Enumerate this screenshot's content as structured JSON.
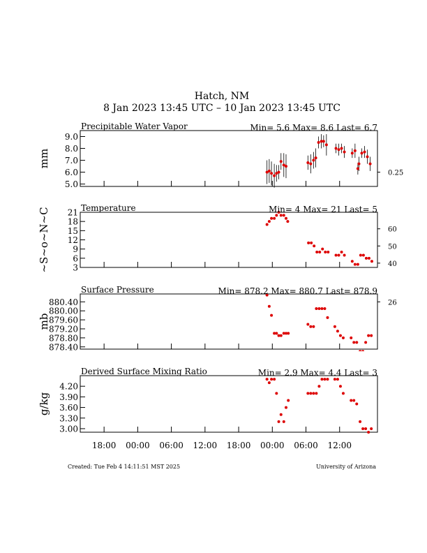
{
  "header": {
    "title": "Hatch, NM",
    "subtitle": "8 Jan 2023 13:45 UTC – 10 Jan 2023 13:45 UTC"
  },
  "footer": {
    "created": "Created: Tue Feb  4 14:11:51 MST 2025",
    "credit": "University of Arizona"
  },
  "x_tick_labels": [
    "18:00",
    "00:00",
    "06:00",
    "12:00",
    "18:00",
    "00:00",
    "06:00",
    "12:00"
  ],
  "colors": {
    "points": "#dd0000",
    "error_bars": "#000000",
    "axes": "#000000"
  },
  "chart_data": [
    {
      "type": "scatter",
      "title": "Precipitable Water Vapor",
      "ylabel": "mm",
      "stats": "Min= 5.6 Max= 8.6 Last= 6.7",
      "ylim": [
        4.8,
        9.5
      ],
      "yticks": [
        5.0,
        6.0,
        7.0,
        8.0,
        9.0
      ],
      "ytick_labels": [
        "5.0",
        "6.0",
        "7.0",
        "8.0",
        "9.0"
      ],
      "right_label": "0.25",
      "right_label_at": 6.0,
      "x_unit": "hours since 8 Jan 2023 13:45 UTC",
      "x": [
        33.3,
        33.7,
        34.1,
        34.6,
        35.0,
        35.4,
        35.8,
        36.3,
        36.7,
        40.6,
        41.1,
        41.6,
        42.0,
        42.5,
        43.0,
        43.4,
        43.9,
        45.6,
        46.1,
        46.6,
        47.1,
        48.5,
        49.0,
        49.5,
        49.7,
        50.2,
        50.7,
        51.2,
        51.7
      ],
      "y": [
        6.0,
        6.1,
        5.9,
        5.7,
        5.9,
        6.0,
        6.9,
        6.6,
        6.5,
        6.8,
        6.7,
        7.0,
        7.2,
        8.5,
        8.6,
        8.6,
        8.3,
        8.0,
        7.9,
        8.0,
        7.7,
        7.6,
        7.8,
        6.3,
        6.7,
        7.6,
        7.7,
        7.3,
        6.7
      ],
      "yerr": [
        1.0,
        1.0,
        1.0,
        1.0,
        0.7,
        0.6,
        0.7,
        1.0,
        1.0,
        0.6,
        0.8,
        0.7,
        0.8,
        0.5,
        0.6,
        0.5,
        0.9,
        0.4,
        0.5,
        0.4,
        0.5,
        0.4,
        0.6,
        0.5,
        0.6,
        0.4,
        0.5,
        0.6,
        0.6
      ]
    },
    {
      "type": "scatter",
      "title": "Temperature",
      "ylabel": "~S~o~N~C",
      "stats": "Min= 4 Max= 21 Last= 5",
      "ylim": [
        3,
        21
      ],
      "yticks": [
        3,
        6,
        9,
        12,
        15,
        18,
        21
      ],
      "ytick_labels": [
        "3",
        "6",
        "9",
        "12",
        "15",
        "18",
        "21"
      ],
      "right_ticks": [
        {
          "label": "40",
          "at": 4.4
        },
        {
          "label": "50",
          "at": 10.0
        },
        {
          "label": "60",
          "at": 15.6
        }
      ],
      "x_unit": "hours since 8 Jan 2023 13:45 UTC",
      "x": [
        33.3,
        33.7,
        34.1,
        34.6,
        35.0,
        35.4,
        35.8,
        36.3,
        36.7,
        37.0,
        40.7,
        41.2,
        41.7,
        42.2,
        42.7,
        43.2,
        43.7,
        44.2,
        45.6,
        46.1,
        46.6,
        47.1,
        48.5,
        49.0,
        49.5,
        50.0,
        50.5,
        51.0,
        51.5,
        52.0
      ],
      "y": [
        17,
        18,
        19,
        19,
        20,
        21,
        20,
        20,
        19,
        18,
        11,
        11,
        10,
        8,
        8,
        9,
        8,
        8,
        7,
        7,
        8,
        7,
        5,
        4,
        4,
        7,
        7,
        6,
        6,
        5
      ]
    },
    {
      "type": "scatter",
      "title": "Surface Pressure",
      "ylabel": "mb",
      "stats": "Min= 878.2 Max= 880.7 Last= 878.9",
      "ylim": [
        878.3,
        880.75
      ],
      "yticks": [
        878.4,
        878.8,
        879.2,
        879.6,
        880.0,
        880.4
      ],
      "ytick_labels": [
        "878.40",
        "878.80",
        "879.20",
        "879.60",
        "880.00",
        "880.40"
      ],
      "right_label": "26",
      "right_label_at": 880.4,
      "x_unit": "hours since 8 Jan 2023 13:45 UTC",
      "x": [
        33.3,
        33.7,
        34.1,
        34.6,
        35.0,
        35.4,
        35.8,
        36.3,
        36.7,
        37.1,
        40.6,
        41.1,
        41.6,
        42.1,
        42.6,
        43.1,
        43.6,
        44.1,
        45.4,
        45.9,
        46.4,
        46.9,
        48.3,
        48.8,
        49.3,
        49.9,
        50.4,
        50.9,
        51.4,
        51.9
      ],
      "y": [
        880.7,
        880.2,
        879.8,
        879.0,
        879.0,
        878.9,
        878.9,
        879.0,
        879.0,
        879.0,
        879.4,
        879.3,
        879.3,
        880.1,
        880.1,
        880.1,
        880.1,
        879.7,
        879.3,
        879.1,
        878.9,
        878.8,
        878.8,
        878.6,
        878.6,
        878.2,
        878.2,
        878.6,
        878.9,
        878.9
      ]
    },
    {
      "type": "scatter",
      "title": "Derived Surface Mixing Ratio",
      "ylabel": "g/kg",
      "stats": "Min= 2.9 Max= 4.4 Last= 3",
      "ylim": [
        2.9,
        4.5
      ],
      "yticks": [
        3.0,
        3.3,
        3.6,
        3.9,
        4.2
      ],
      "ytick_labels": [
        "3.00",
        "3.30",
        "3.60",
        "3.90",
        "4.20"
      ],
      "x_unit": "hours since 8 Jan 2023 13:45 UTC",
      "x": [
        33.3,
        33.7,
        34.1,
        34.6,
        35.0,
        35.4,
        35.8,
        36.3,
        36.7,
        37.1,
        40.6,
        41.1,
        41.6,
        42.1,
        42.6,
        43.1,
        43.6,
        44.1,
        45.4,
        45.9,
        46.4,
        46.9,
        48.3,
        48.8,
        49.3,
        49.9,
        50.4,
        50.9,
        51.4,
        51.9
      ],
      "y": [
        4.4,
        4.3,
        4.4,
        4.4,
        4.0,
        3.2,
        3.4,
        3.2,
        3.6,
        3.8,
        4.0,
        4.0,
        4.0,
        4.0,
        4.2,
        4.4,
        4.4,
        4.4,
        4.4,
        4.4,
        4.2,
        4.0,
        3.8,
        3.8,
        3.7,
        3.2,
        3.0,
        3.0,
        2.9,
        3.0
      ]
    }
  ]
}
